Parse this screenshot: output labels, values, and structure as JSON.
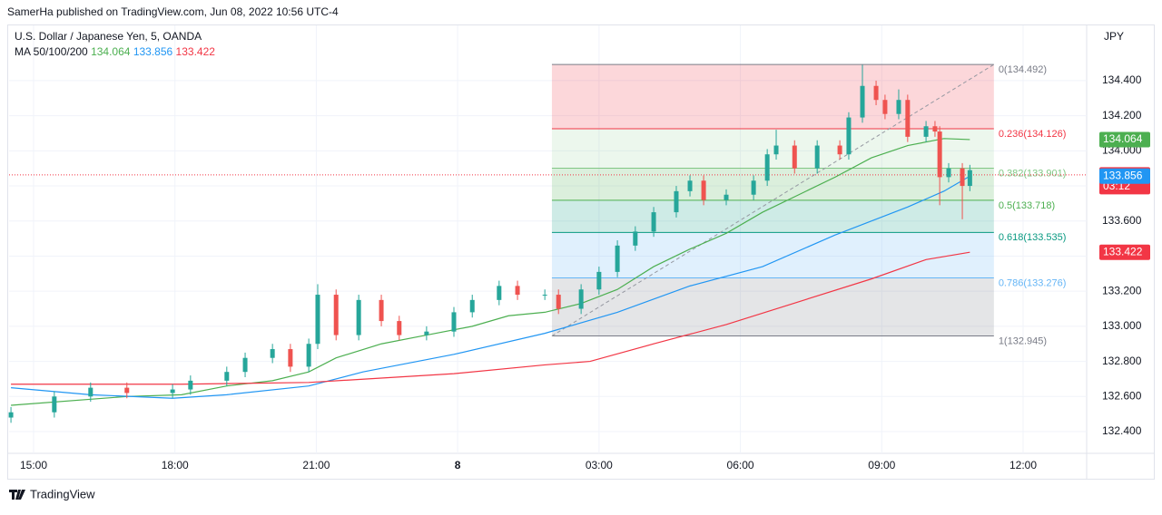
{
  "chart_data": {
    "type": "candlestick",
    "header": "SamerHa published on TradingView.com, Jun 08, 2022 10:56 UTC-4",
    "title": "U.S. Dollar / Japanese Yen, 5, OANDA",
    "ma_label": "MA 50/100/200",
    "currency": "JPY",
    "brand": "TradingView",
    "xlim": [
      14.48,
      37.31
    ],
    "ylim": [
      132.276,
      134.72
    ],
    "xticks": [
      {
        "value": 15,
        "label": "15:00"
      },
      {
        "value": 18,
        "label": "18:00"
      },
      {
        "value": 21,
        "label": "21:00"
      },
      {
        "value": 24,
        "label": "8"
      },
      {
        "value": 27,
        "label": "03:00"
      },
      {
        "value": 30,
        "label": "06:00"
      },
      {
        "value": 33,
        "label": "09:00"
      },
      {
        "value": 36,
        "label": "12:00"
      }
    ],
    "yticks": [
      {
        "value": 132.4,
        "label": "132.400"
      },
      {
        "value": 132.6,
        "label": "132.600"
      },
      {
        "value": 132.8,
        "label": "132.800"
      },
      {
        "value": 133,
        "label": "133.000"
      },
      {
        "value": 133.2,
        "label": "133.200"
      },
      {
        "value": 133.4,
        "label": "133.400"
      },
      {
        "value": 133.6,
        "label": "133.600"
      },
      {
        "value": 133.8,
        "label": "133.800"
      },
      {
        "value": 134,
        "label": "134.000"
      },
      {
        "value": 134.2,
        "label": "134.200"
      },
      {
        "value": 134.4,
        "label": "134.400"
      }
    ],
    "grid": true,
    "candles": {
      "up_color": "#26a69a",
      "down_color": "#ef5350",
      "x": [
        14.52,
        15.44,
        16.21,
        16.98,
        17.95,
        18.33,
        19.1,
        19.49,
        20.07,
        20.45,
        20.84,
        21.03,
        21.42,
        21.9,
        22.38,
        22.76,
        23.34,
        23.92,
        24.31,
        24.88,
        25.27,
        25.85,
        26.14,
        26.62,
        27.0,
        27.39,
        27.77,
        28.16,
        28.64,
        28.93,
        29.22,
        29.7,
        30.28,
        30.57,
        30.76,
        31.15,
        31.63,
        32.11,
        32.3,
        32.59,
        32.88,
        33.07,
        33.36,
        33.55,
        33.94,
        34.13,
        34.23,
        34.42,
        34.71,
        34.87
      ],
      "open": [
        132.48,
        132.51,
        132.6,
        132.65,
        132.62,
        132.64,
        132.69,
        132.74,
        132.82,
        132.87,
        132.77,
        132.9,
        133.18,
        132.95,
        133.15,
        133.03,
        132.95,
        132.97,
        133.08,
        133.15,
        133.23,
        133.18,
        133.18,
        133.1,
        133.21,
        133.31,
        133.46,
        133.54,
        133.65,
        133.77,
        133.83,
        133.72,
        133.75,
        133.83,
        133.98,
        134.03,
        133.9,
        134.03,
        133.98,
        134.19,
        134.37,
        134.29,
        134.21,
        134.29,
        134.08,
        134.14,
        134.11,
        133.85,
        133.9,
        133.8
      ],
      "high": [
        132.54,
        132.63,
        132.68,
        132.68,
        132.67,
        132.72,
        132.77,
        132.85,
        132.9,
        132.9,
        132.93,
        133.24,
        133.21,
        133.18,
        133.18,
        133.06,
        133.0,
        133.11,
        133.18,
        133.26,
        133.26,
        133.21,
        133.21,
        133.24,
        133.34,
        133.49,
        133.57,
        133.68,
        133.8,
        133.86,
        133.86,
        133.78,
        133.86,
        134.01,
        134.12,
        134.06,
        134.06,
        134.06,
        134.22,
        134.49,
        134.4,
        134.32,
        134.35,
        134.32,
        134.17,
        134.17,
        134.14,
        133.93,
        133.93,
        133.92
      ],
      "low": [
        132.45,
        132.48,
        132.57,
        132.59,
        132.59,
        132.61,
        132.66,
        132.71,
        132.79,
        132.74,
        132.74,
        132.87,
        132.92,
        132.92,
        133.0,
        132.92,
        132.92,
        132.94,
        133.05,
        133.12,
        133.15,
        133.15,
        133.07,
        133.07,
        133.18,
        133.28,
        133.43,
        133.51,
        133.62,
        133.74,
        133.69,
        133.69,
        133.72,
        133.8,
        133.95,
        133.87,
        133.87,
        133.95,
        133.95,
        134.16,
        134.26,
        134.18,
        134.18,
        134.05,
        134.05,
        134.08,
        133.69,
        133.82,
        133.61,
        133.77
      ],
      "close": [
        132.51,
        132.6,
        132.65,
        132.62,
        132.64,
        132.69,
        132.74,
        132.82,
        132.87,
        132.77,
        132.9,
        133.18,
        132.95,
        133.15,
        133.03,
        132.95,
        132.97,
        133.08,
        133.15,
        133.23,
        133.18,
        133.18,
        133.1,
        133.21,
        133.31,
        133.46,
        133.54,
        133.65,
        133.77,
        133.83,
        133.72,
        133.75,
        133.83,
        133.98,
        134.03,
        133.9,
        134.03,
        133.98,
        134.19,
        134.37,
        134.29,
        134.21,
        134.29,
        134.08,
        134.14,
        134.11,
        133.85,
        133.9,
        133.8,
        133.89
      ]
    },
    "series": [
      {
        "color": "#4caf50",
        "last": 134.064,
        "x": [
          14.52,
          16.98,
          18.14,
          19.1,
          20.07,
          20.84,
          21.42,
          22.38,
          23.34,
          24.31,
          25.08,
          25.85,
          26.62,
          27.39,
          28.16,
          28.93,
          29.7,
          30.47,
          31.24,
          32.01,
          32.78,
          33.55,
          34.32,
          34.87
        ],
        "values": [
          132.55,
          132.6,
          132.61,
          132.66,
          132.69,
          132.74,
          132.82,
          132.9,
          132.95,
          133.0,
          133.06,
          133.08,
          133.13,
          133.21,
          133.34,
          133.44,
          133.53,
          133.65,
          133.75,
          133.85,
          133.96,
          134.03,
          134.07,
          134.064
        ]
      },
      {
        "color": "#2196f3",
        "last": 133.856,
        "x": [
          14.52,
          16.21,
          17.95,
          19.1,
          20.84,
          21.99,
          23.92,
          25.85,
          27.39,
          28.93,
          30.47,
          32.01,
          33.55,
          34.32,
          34.87
        ],
        "values": [
          132.65,
          132.61,
          132.59,
          132.61,
          132.66,
          132.74,
          132.84,
          132.96,
          133.08,
          133.23,
          133.34,
          133.52,
          133.68,
          133.77,
          133.856
        ]
      },
      {
        "color": "#f23645",
        "last": 133.422,
        "x": [
          14.52,
          18.14,
          20.84,
          23.92,
          25.85,
          26.81,
          28.16,
          29.7,
          31.24,
          32.78,
          33.94,
          34.87
        ],
        "values": [
          132.67,
          132.67,
          132.68,
          132.73,
          132.78,
          132.8,
          132.9,
          133.01,
          133.14,
          133.27,
          133.38,
          133.422
        ]
      }
    ],
    "last_price": {
      "value": 133.863,
      "countdown": "03:12",
      "color": "#f23645"
    },
    "fib": {
      "x": [
        26.0,
        35.38
      ],
      "levels": [
        {
          "ratio": 0,
          "price": 134.492,
          "label": "0(134.492)",
          "color": "#787b86",
          "fill": "#f2364533"
        },
        {
          "ratio": 0.236,
          "price": 134.126,
          "label": "0.236(134.126)",
          "color": "#f23645",
          "fill": "#81c78426"
        },
        {
          "ratio": 0.382,
          "price": 133.901,
          "label": "0.382(133.901)",
          "color": "#81c784",
          "fill": "#4caf5033"
        },
        {
          "ratio": 0.5,
          "price": 133.718,
          "label": "0.5(133.718)",
          "color": "#4caf50",
          "fill": "#08998133"
        },
        {
          "ratio": 0.618,
          "price": 133.535,
          "label": "0.618(133.535)",
          "color": "#089981",
          "fill": "#64b5f633"
        },
        {
          "ratio": 0.786,
          "price": 133.276,
          "label": "0.786(133.276)",
          "color": "#64b5f6",
          "fill": "#787b8633"
        },
        {
          "ratio": 1,
          "price": 132.945,
          "label": "1(132.945)",
          "color": "#787b86"
        }
      ],
      "trend": {
        "x": [
          26.0,
          35.38
        ],
        "values": [
          132.945,
          134.492
        ]
      }
    }
  }
}
